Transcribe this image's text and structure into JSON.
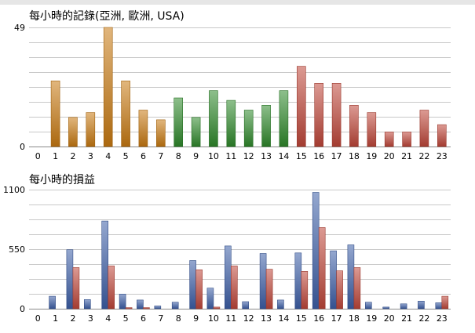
{
  "chart_data": [
    {
      "type": "bar",
      "title": "每小時的記錄(亞洲, 歐洲, USA)",
      "categories": [
        "0",
        "1",
        "2",
        "3",
        "4",
        "5",
        "6",
        "7",
        "8",
        "9",
        "10",
        "11",
        "12",
        "13",
        "14",
        "15",
        "16",
        "17",
        "18",
        "19",
        "20",
        "21",
        "22",
        "23"
      ],
      "ytick_labels": [
        "0",
        "49"
      ],
      "ylim": [
        0,
        49
      ],
      "grid": true,
      "values": [
        0,
        27,
        12,
        14,
        49,
        27,
        15,
        11,
        20,
        12,
        23,
        19,
        15,
        17,
        23,
        33,
        26,
        26,
        17,
        14,
        6,
        6,
        15,
        9
      ],
      "segment_colors": [
        "#c97a12",
        "#c97a12",
        "#c97a12",
        "#c97a12",
        "#c97a12",
        "#c97a12",
        "#c97a12",
        "#c97a12",
        "#2f8a2c",
        "#2f8a2c",
        "#2f8a2c",
        "#2f8a2c",
        "#2f8a2c",
        "#2f8a2c",
        "#2f8a2c",
        "#c0473a",
        "#c0473a",
        "#c0473a",
        "#c0473a",
        "#c0473a",
        "#c0473a",
        "#c0473a",
        "#c0473a",
        "#c0473a"
      ]
    },
    {
      "type": "bar",
      "title": "每小時的損益",
      "categories": [
        "0",
        "1",
        "2",
        "3",
        "4",
        "5",
        "6",
        "7",
        "8",
        "9",
        "10",
        "11",
        "12",
        "13",
        "14",
        "15",
        "16",
        "17",
        "18",
        "19",
        "20",
        "21",
        "22",
        "23"
      ],
      "ytick_labels": [
        "0",
        "550",
        "1100"
      ],
      "ylim": [
        0,
        1100
      ],
      "grid": true,
      "series": [
        {
          "color": "#3d5fa8",
          "values": [
            0,
            115,
            545,
            85,
            810,
            135,
            80,
            25,
            60,
            445,
            190,
            580,
            65,
            510,
            80,
            515,
            1075,
            535,
            590,
            60,
            15,
            45,
            70,
            55
          ]
        },
        {
          "color": "#c0473a",
          "values": [
            0,
            0,
            380,
            0,
            395,
            10,
            10,
            0,
            0,
            360,
            15,
            395,
            0,
            365,
            0,
            345,
            750,
            350,
            380,
            0,
            0,
            0,
            0,
            115
          ]
        }
      ]
    }
  ]
}
